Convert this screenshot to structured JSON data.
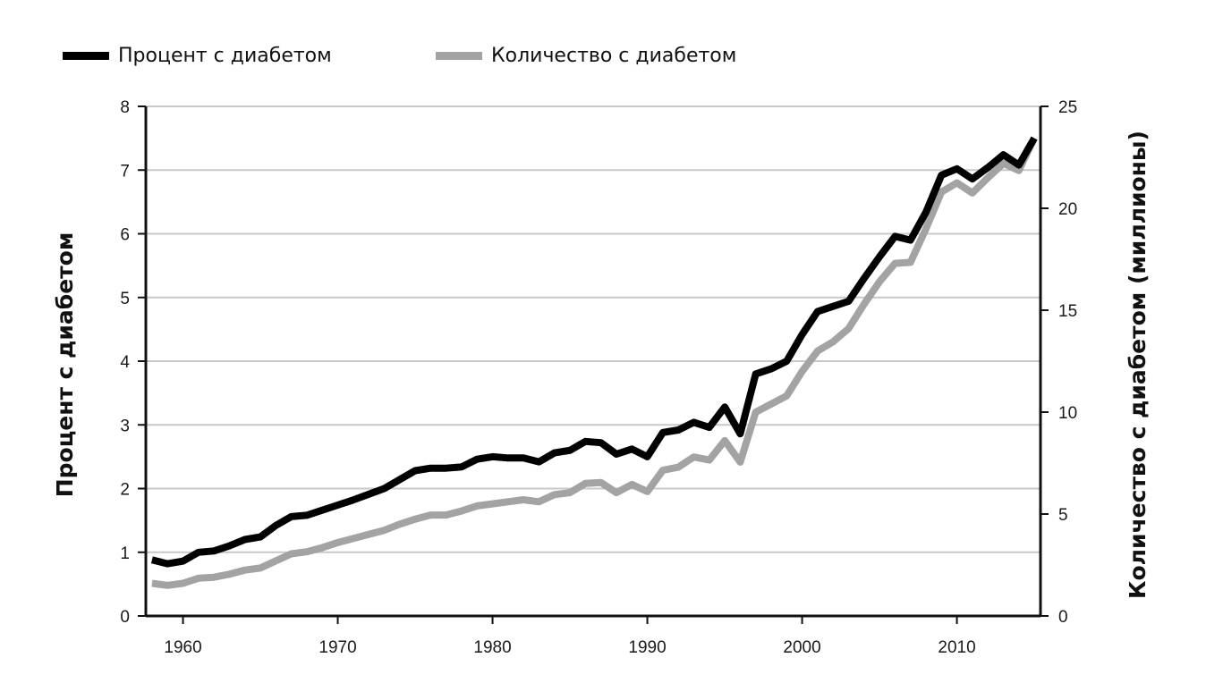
{
  "colors": {
    "series1": "#000000",
    "series2": "#a3a3a3",
    "grid": "#c8c8c8",
    "axis": "#111111"
  },
  "chart_data": {
    "type": "line",
    "legend": {
      "placement": "top-left",
      "orientation": "horizontal"
    },
    "grid": {
      "horizontal": true,
      "vertical": false
    },
    "x": [
      1958,
      1959,
      1960,
      1961,
      1962,
      1963,
      1964,
      1965,
      1966,
      1967,
      1968,
      1969,
      1970,
      1971,
      1972,
      1973,
      1974,
      1975,
      1976,
      1977,
      1978,
      1979,
      1980,
      1981,
      1982,
      1983,
      1984,
      1985,
      1986,
      1987,
      1988,
      1989,
      1990,
      1991,
      1992,
      1993,
      1994,
      1995,
      1996,
      1997,
      1998,
      1999,
      2000,
      2001,
      2002,
      2003,
      2004,
      2005,
      2006,
      2007,
      2008,
      2009,
      2010,
      2011,
      2012,
      2013,
      2014,
      2015
    ],
    "xlim": [
      1957.6,
      2015.4
    ],
    "xticks": [
      "1960",
      "1970",
      "1980",
      "1990",
      "2000",
      "2010"
    ],
    "xtick_values": [
      1960,
      1970,
      1980,
      1990,
      2000,
      2010
    ],
    "series": [
      {
        "name": "Процент с диабетом",
        "axis": "left",
        "values": [
          0.88,
          0.82,
          0.86,
          1.0,
          1.02,
          1.1,
          1.2,
          1.24,
          1.42,
          1.56,
          1.58,
          1.66,
          1.74,
          1.82,
          1.91,
          2.0,
          2.14,
          2.28,
          2.32,
          2.32,
          2.34,
          2.46,
          2.5,
          2.48,
          2.48,
          2.42,
          2.56,
          2.6,
          2.74,
          2.72,
          2.54,
          2.62,
          2.5,
          2.88,
          2.92,
          3.04,
          2.96,
          3.28,
          2.86,
          3.8,
          3.88,
          4.0,
          4.42,
          4.78,
          4.86,
          4.94,
          5.3,
          5.64,
          5.96,
          5.9,
          6.34,
          6.92,
          7.02,
          6.86,
          7.04,
          7.24,
          7.08,
          7.5
        ]
      },
      {
        "name": "Количество с диабетом",
        "axis": "right",
        "values": [
          1.6,
          1.5,
          1.6,
          1.85,
          1.9,
          2.05,
          2.25,
          2.35,
          2.7,
          3.05,
          3.15,
          3.35,
          3.6,
          3.8,
          4.0,
          4.2,
          4.5,
          4.75,
          4.95,
          4.95,
          5.15,
          5.4,
          5.5,
          5.6,
          5.7,
          5.6,
          5.95,
          6.05,
          6.5,
          6.55,
          6.05,
          6.45,
          6.1,
          7.15,
          7.3,
          7.8,
          7.65,
          8.6,
          7.55,
          10.0,
          10.4,
          10.8,
          12.0,
          13.0,
          13.45,
          14.1,
          15.3,
          16.4,
          17.3,
          17.35,
          19.0,
          20.8,
          21.25,
          20.75,
          21.5,
          22.2,
          21.85,
          23.45
        ]
      }
    ],
    "y_left": {
      "label": "Процент с диабетом",
      "ylim": [
        0,
        8
      ],
      "ticks": [
        "0",
        "1",
        "2",
        "3",
        "4",
        "5",
        "6",
        "7",
        "8"
      ],
      "tick_values": [
        0,
        1,
        2,
        3,
        4,
        5,
        6,
        7,
        8
      ]
    },
    "y_right": {
      "label": "Количество с диабетом (миллионы)",
      "ylim": [
        0,
        25
      ],
      "ticks": [
        "0",
        "5",
        "10",
        "15",
        "20",
        "25"
      ],
      "tick_values": [
        0,
        5,
        10,
        15,
        20,
        25
      ]
    }
  }
}
